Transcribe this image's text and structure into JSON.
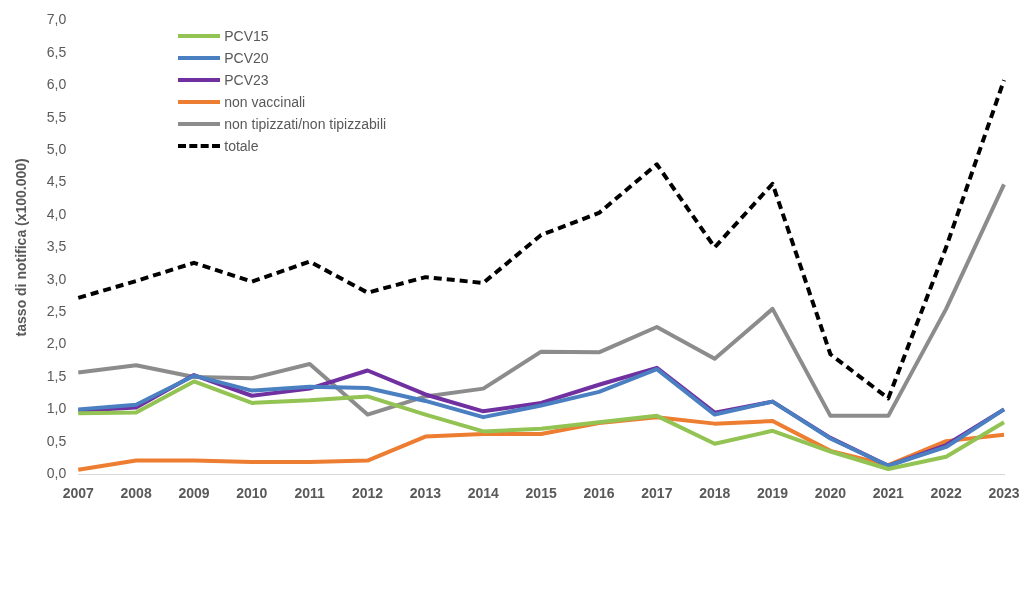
{
  "chart_data": {
    "type": "line",
    "ylabel": "tasso di notifica (x100.000)",
    "categories": [
      "2007",
      "2008",
      "2009",
      "2010",
      "2011",
      "2012",
      "2013",
      "2014",
      "2015",
      "2016",
      "2017",
      "2018",
      "2019",
      "2020",
      "2021",
      "2022",
      "2023"
    ],
    "series": [
      {
        "name": "PCV15",
        "color": "#92c353",
        "values": [
          0.94,
          0.95,
          1.43,
          1.1,
          1.14,
          1.2,
          0.92,
          0.66,
          0.7,
          0.8,
          0.9,
          0.47,
          0.67,
          0.35,
          0.08,
          0.27,
          0.8
        ]
      },
      {
        "name": "PCV20",
        "color": "#4a7fc1",
        "values": [
          1.0,
          1.07,
          1.52,
          1.29,
          1.35,
          1.33,
          1.13,
          0.88,
          1.06,
          1.27,
          1.62,
          0.92,
          1.12,
          0.55,
          0.13,
          0.42,
          1.0
        ]
      },
      {
        "name": "PCV23",
        "color": "#7030a0",
        "values": [
          0.98,
          1.03,
          1.53,
          1.21,
          1.32,
          1.6,
          1.23,
          0.97,
          1.1,
          1.38,
          1.64,
          0.95,
          1.12,
          0.56,
          0.13,
          0.45,
          1.0
        ]
      },
      {
        "name": "non vaccinali",
        "color": "#ed7d31",
        "values": [
          0.07,
          0.21,
          0.21,
          0.19,
          0.19,
          0.21,
          0.58,
          0.62,
          0.62,
          0.79,
          0.88,
          0.78,
          0.82,
          0.36,
          0.14,
          0.51,
          0.61
        ]
      },
      {
        "name": "non tipizzati/non tipizzabili",
        "color": "#8c8c8c",
        "values": [
          1.57,
          1.68,
          1.5,
          1.48,
          1.7,
          0.92,
          1.2,
          1.32,
          1.89,
          1.88,
          2.27,
          1.78,
          2.55,
          0.9,
          0.9,
          2.55,
          4.47
        ]
      },
      {
        "name": "totale",
        "color": "#000000",
        "line_style": "dashed",
        "values": [
          2.72,
          2.98,
          3.26,
          2.97,
          3.28,
          2.8,
          3.04,
          2.95,
          3.69,
          4.03,
          4.78,
          3.5,
          4.48,
          1.85,
          1.17,
          3.5,
          6.08
        ]
      }
    ],
    "ylim": [
      0,
      7
    ],
    "yticks": [
      {
        "value": 0,
        "label": "0,0"
      },
      {
        "value": 0.5,
        "label": "0,5"
      },
      {
        "value": 1,
        "label": "1,0"
      },
      {
        "value": 1.5,
        "label": "1,5"
      },
      {
        "value": 2,
        "label": "2,0"
      },
      {
        "value": 2.5,
        "label": "2,5"
      },
      {
        "value": 3,
        "label": "3,0"
      },
      {
        "value": 3.5,
        "label": "3,5"
      },
      {
        "value": 4,
        "label": "4,0"
      },
      {
        "value": 4.5,
        "label": "4,5"
      },
      {
        "value": 5,
        "label": "5,0"
      },
      {
        "value": 5.5,
        "label": "5,5"
      },
      {
        "value": 6,
        "label": "6,0"
      },
      {
        "value": 6.5,
        "label": "6,5"
      },
      {
        "value": 7,
        "label": "7,0"
      }
    ],
    "grid": false,
    "legend": "top left",
    "marker": "none",
    "line_style": "solid"
  }
}
